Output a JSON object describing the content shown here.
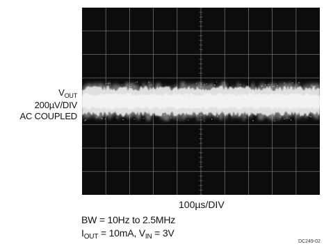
{
  "chart_data": {
    "type": "oscilloscope-trace",
    "y_axis": {
      "signal": "V",
      "signal_subscript": "OUT",
      "scale": "200µV/DIV",
      "coupling": "AC COUPLED"
    },
    "x_axis": {
      "scale": "100µs/DIV"
    },
    "divisions": {
      "x": 10,
      "y": 8
    },
    "grid": true,
    "background": "#0c0c0c",
    "trace_color": "#f2f2f2",
    "grid_color": "#6e6e6e",
    "noise_band_divisions": {
      "center": 0.0,
      "peak_to_peak": 1.3
    }
  },
  "conditions": {
    "bw": "BW = 10Hz to 2.5MHz",
    "iout_symbol": "I",
    "iout_sub": "OUT",
    "iout_value": " = 10mA, V",
    "vin_sub": "IN",
    "vin_value": " = 3V"
  },
  "figure_code": "DC249-02"
}
